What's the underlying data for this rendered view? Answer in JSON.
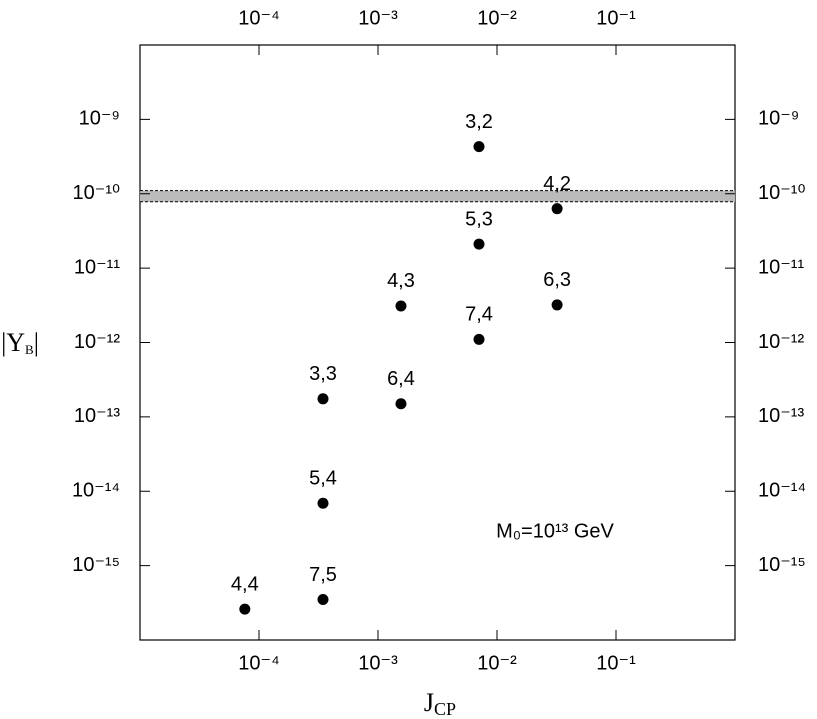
{
  "chart_data": {
    "type": "scatter",
    "x_label": {
      "main": "J",
      "sub": "CP"
    },
    "y_label": {
      "main": "|Y",
      "sub": "B",
      "end": "|"
    },
    "annotation": "M₀=10¹³ GeV",
    "x": [
      0.00706,
      0.032,
      0.00706,
      0.00156,
      0.032,
      0.00706,
      0.000345,
      0.00156,
      0.000345,
      7.6e-05,
      0.000345
    ],
    "values": [
      4.3e-10,
      6.3e-11,
      2.1e-11,
      3.1e-12,
      3.2e-12,
      1.1e-12,
      1.75e-13,
      1.5e-13,
      6.9e-15,
      2.6e-16,
      3.5e-16
    ],
    "point_labels": [
      "3,2",
      "4,2",
      "5,3",
      "4,3",
      "6,3",
      "7,4",
      "3,3",
      "6,4",
      "5,4",
      "4,4",
      "7,5"
    ],
    "color": "#000000",
    "band": [
      7.8e-11,
      1.1e-10
    ],
    "band_color": "#bbbbbb",
    "xlog": true,
    "ylog": true,
    "xlim": [
      1e-05,
      1
    ],
    "ylim": [
      1e-16,
      1e-08
    ],
    "xticks": [
      {
        "value": 0.0001,
        "label": "10⁻⁴"
      },
      {
        "value": 0.001,
        "label": "10⁻³"
      },
      {
        "value": 0.01,
        "label": "10⁻²"
      },
      {
        "value": 0.1,
        "label": "10⁻¹"
      }
    ],
    "yticks": [
      {
        "value": 1e-09,
        "label": "10⁻⁹"
      },
      {
        "value": 1e-10,
        "label": "10⁻¹⁰"
      },
      {
        "value": 1e-11,
        "label": "10⁻¹¹"
      },
      {
        "value": 1e-12,
        "label": "10⁻¹²"
      },
      {
        "value": 1e-13,
        "label": "10⁻¹³"
      },
      {
        "value": 1e-14,
        "label": "10⁻¹⁴"
      },
      {
        "value": 1e-15,
        "label": "10⁻¹⁵"
      }
    ]
  }
}
